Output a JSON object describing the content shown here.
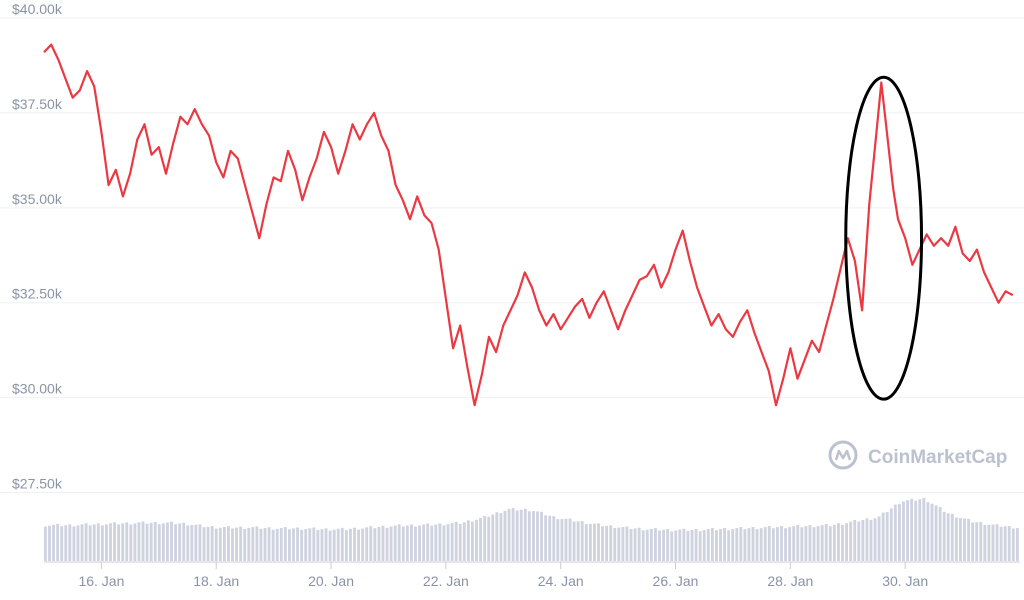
{
  "chart_data": {
    "type": "line",
    "colors": {
      "price_line": "#ea3943",
      "volume_bars": "#cfd3e0",
      "grid": "#eef0f4",
      "axis_text": "#8a93a6",
      "watermark": "#bcc1cf",
      "annotation": "#000000"
    },
    "ylim": [
      26250,
      40000
    ],
    "y_ticks": [
      {
        "value": 40000,
        "label": "$40.00k"
      },
      {
        "value": 37500,
        "label": "$37.50k"
      },
      {
        "value": 35000,
        "label": "$35.00k"
      },
      {
        "value": 32500,
        "label": "$32.50k"
      },
      {
        "value": 30000,
        "label": "$30.00k"
      },
      {
        "value": 27500,
        "label": "$27.50k"
      }
    ],
    "x_ticks": [
      {
        "value": "2022-01-16",
        "label": "16. Jan"
      },
      {
        "value": "2022-01-18",
        "label": "18. Jan"
      },
      {
        "value": "2022-01-20",
        "label": "20. Jan"
      },
      {
        "value": "2022-01-22",
        "label": "22. Jan"
      },
      {
        "value": "2022-01-24",
        "label": "24. Jan"
      },
      {
        "value": "2022-01-26",
        "label": "26. Jan"
      },
      {
        "value": "2022-01-28",
        "label": "28. Jan"
      },
      {
        "value": "2022-01-30",
        "label": "30. Jan"
      }
    ],
    "xlim": [
      "2022-01-15T00:00",
      "2022-02-01T00:00"
    ],
    "price_series": [
      {
        "x": "2022-01-15T00:00",
        "y": 39100
      },
      {
        "x": "2022-01-15T03:00",
        "y": 39300
      },
      {
        "x": "2022-01-15T06:00",
        "y": 38900
      },
      {
        "x": "2022-01-15T09:00",
        "y": 38400
      },
      {
        "x": "2022-01-15T12:00",
        "y": 37900
      },
      {
        "x": "2022-01-15T15:00",
        "y": 38100
      },
      {
        "x": "2022-01-15T18:00",
        "y": 38600
      },
      {
        "x": "2022-01-15T21:00",
        "y": 38200
      },
      {
        "x": "2022-01-16T00:00",
        "y": 37000
      },
      {
        "x": "2022-01-16T03:00",
        "y": 35600
      },
      {
        "x": "2022-01-16T06:00",
        "y": 36000
      },
      {
        "x": "2022-01-16T09:00",
        "y": 35300
      },
      {
        "x": "2022-01-16T12:00",
        "y": 35900
      },
      {
        "x": "2022-01-16T15:00",
        "y": 36800
      },
      {
        "x": "2022-01-16T18:00",
        "y": 37200
      },
      {
        "x": "2022-01-16T21:00",
        "y": 36400
      },
      {
        "x": "2022-01-17T00:00",
        "y": 36600
      },
      {
        "x": "2022-01-17T03:00",
        "y": 35900
      },
      {
        "x": "2022-01-17T06:00",
        "y": 36700
      },
      {
        "x": "2022-01-17T09:00",
        "y": 37400
      },
      {
        "x": "2022-01-17T12:00",
        "y": 37200
      },
      {
        "x": "2022-01-17T15:00",
        "y": 37600
      },
      {
        "x": "2022-01-17T18:00",
        "y": 37200
      },
      {
        "x": "2022-01-17T21:00",
        "y": 36900
      },
      {
        "x": "2022-01-18T00:00",
        "y": 36200
      },
      {
        "x": "2022-01-18T03:00",
        "y": 35800
      },
      {
        "x": "2022-01-18T06:00",
        "y": 36500
      },
      {
        "x": "2022-01-18T09:00",
        "y": 36300
      },
      {
        "x": "2022-01-18T12:00",
        "y": 35600
      },
      {
        "x": "2022-01-18T15:00",
        "y": 34900
      },
      {
        "x": "2022-01-18T18:00",
        "y": 34200
      },
      {
        "x": "2022-01-18T21:00",
        "y": 35100
      },
      {
        "x": "2022-01-19T00:00",
        "y": 35800
      },
      {
        "x": "2022-01-19T03:00",
        "y": 35700
      },
      {
        "x": "2022-01-19T06:00",
        "y": 36500
      },
      {
        "x": "2022-01-19T09:00",
        "y": 36000
      },
      {
        "x": "2022-01-19T12:00",
        "y": 35200
      },
      {
        "x": "2022-01-19T15:00",
        "y": 35800
      },
      {
        "x": "2022-01-19T18:00",
        "y": 36300
      },
      {
        "x": "2022-01-19T21:00",
        "y": 37000
      },
      {
        "x": "2022-01-20T00:00",
        "y": 36600
      },
      {
        "x": "2022-01-20T03:00",
        "y": 35900
      },
      {
        "x": "2022-01-20T06:00",
        "y": 36500
      },
      {
        "x": "2022-01-20T09:00",
        "y": 37200
      },
      {
        "x": "2022-01-20T12:00",
        "y": 36800
      },
      {
        "x": "2022-01-20T15:00",
        "y": 37200
      },
      {
        "x": "2022-01-20T18:00",
        "y": 37500
      },
      {
        "x": "2022-01-20T21:00",
        "y": 36900
      },
      {
        "x": "2022-01-21T00:00",
        "y": 36500
      },
      {
        "x": "2022-01-21T03:00",
        "y": 35600
      },
      {
        "x": "2022-01-21T06:00",
        "y": 35200
      },
      {
        "x": "2022-01-21T09:00",
        "y": 34700
      },
      {
        "x": "2022-01-21T12:00",
        "y": 35300
      },
      {
        "x": "2022-01-21T15:00",
        "y": 34800
      },
      {
        "x": "2022-01-21T18:00",
        "y": 34600
      },
      {
        "x": "2022-01-21T21:00",
        "y": 33900
      },
      {
        "x": "2022-01-22T00:00",
        "y": 32600
      },
      {
        "x": "2022-01-22T03:00",
        "y": 31300
      },
      {
        "x": "2022-01-22T06:00",
        "y": 31900
      },
      {
        "x": "2022-01-22T09:00",
        "y": 30800
      },
      {
        "x": "2022-01-22T12:00",
        "y": 29800
      },
      {
        "x": "2022-01-22T15:00",
        "y": 30600
      },
      {
        "x": "2022-01-22T18:00",
        "y": 31600
      },
      {
        "x": "2022-01-22T21:00",
        "y": 31200
      },
      {
        "x": "2022-01-23T00:00",
        "y": 31900
      },
      {
        "x": "2022-01-23T03:00",
        "y": 32300
      },
      {
        "x": "2022-01-23T06:00",
        "y": 32700
      },
      {
        "x": "2022-01-23T09:00",
        "y": 33300
      },
      {
        "x": "2022-01-23T12:00",
        "y": 32900
      },
      {
        "x": "2022-01-23T15:00",
        "y": 32300
      },
      {
        "x": "2022-01-23T18:00",
        "y": 31900
      },
      {
        "x": "2022-01-23T21:00",
        "y": 32200
      },
      {
        "x": "2022-01-24T00:00",
        "y": 31800
      },
      {
        "x": "2022-01-24T03:00",
        "y": 32100
      },
      {
        "x": "2022-01-24T06:00",
        "y": 32400
      },
      {
        "x": "2022-01-24T09:00",
        "y": 32600
      },
      {
        "x": "2022-01-24T12:00",
        "y": 32100
      },
      {
        "x": "2022-01-24T15:00",
        "y": 32500
      },
      {
        "x": "2022-01-24T18:00",
        "y": 32800
      },
      {
        "x": "2022-01-24T21:00",
        "y": 32300
      },
      {
        "x": "2022-01-25T00:00",
        "y": 31800
      },
      {
        "x": "2022-01-25T03:00",
        "y": 32300
      },
      {
        "x": "2022-01-25T06:00",
        "y": 32700
      },
      {
        "x": "2022-01-25T09:00",
        "y": 33100
      },
      {
        "x": "2022-01-25T12:00",
        "y": 33200
      },
      {
        "x": "2022-01-25T15:00",
        "y": 33500
      },
      {
        "x": "2022-01-25T18:00",
        "y": 32900
      },
      {
        "x": "2022-01-25T21:00",
        "y": 33300
      },
      {
        "x": "2022-01-26T00:00",
        "y": 33900
      },
      {
        "x": "2022-01-26T03:00",
        "y": 34400
      },
      {
        "x": "2022-01-26T06:00",
        "y": 33600
      },
      {
        "x": "2022-01-26T09:00",
        "y": 32900
      },
      {
        "x": "2022-01-26T12:00",
        "y": 32400
      },
      {
        "x": "2022-01-26T15:00",
        "y": 31900
      },
      {
        "x": "2022-01-26T18:00",
        "y": 32200
      },
      {
        "x": "2022-01-26T21:00",
        "y": 31800
      },
      {
        "x": "2022-01-27T00:00",
        "y": 31600
      },
      {
        "x": "2022-01-27T03:00",
        "y": 32000
      },
      {
        "x": "2022-01-27T06:00",
        "y": 32300
      },
      {
        "x": "2022-01-27T09:00",
        "y": 31700
      },
      {
        "x": "2022-01-27T12:00",
        "y": 31200
      },
      {
        "x": "2022-01-27T15:00",
        "y": 30700
      },
      {
        "x": "2022-01-27T18:00",
        "y": 29800
      },
      {
        "x": "2022-01-27T21:00",
        "y": 30500
      },
      {
        "x": "2022-01-28T00:00",
        "y": 31300
      },
      {
        "x": "2022-01-28T03:00",
        "y": 30500
      },
      {
        "x": "2022-01-28T06:00",
        "y": 31000
      },
      {
        "x": "2022-01-28T09:00",
        "y": 31500
      },
      {
        "x": "2022-01-28T12:00",
        "y": 31200
      },
      {
        "x": "2022-01-28T15:00",
        "y": 31900
      },
      {
        "x": "2022-01-28T18:00",
        "y": 32600
      },
      {
        "x": "2022-01-28T21:00",
        "y": 33400
      },
      {
        "x": "2022-01-29T00:00",
        "y": 34200
      },
      {
        "x": "2022-01-29T03:00",
        "y": 33600
      },
      {
        "x": "2022-01-29T06:00",
        "y": 32300
      },
      {
        "x": "2022-01-29T09:00",
        "y": 35100
      },
      {
        "x": "2022-01-29T12:00",
        "y": 37000
      },
      {
        "x": "2022-01-29T14:00",
        "y": 38300
      },
      {
        "x": "2022-01-29T16:00",
        "y": 37200
      },
      {
        "x": "2022-01-29T19:00",
        "y": 35500
      },
      {
        "x": "2022-01-29T21:00",
        "y": 34700
      },
      {
        "x": "2022-01-30T00:00",
        "y": 34200
      },
      {
        "x": "2022-01-30T03:00",
        "y": 33500
      },
      {
        "x": "2022-01-30T06:00",
        "y": 33900
      },
      {
        "x": "2022-01-30T09:00",
        "y": 34300
      },
      {
        "x": "2022-01-30T12:00",
        "y": 34000
      },
      {
        "x": "2022-01-30T15:00",
        "y": 34200
      },
      {
        "x": "2022-01-30T18:00",
        "y": 34000
      },
      {
        "x": "2022-01-30T21:00",
        "y": 34500
      },
      {
        "x": "2022-01-31T00:00",
        "y": 33800
      },
      {
        "x": "2022-01-31T03:00",
        "y": 33600
      },
      {
        "x": "2022-01-31T06:00",
        "y": 33900
      },
      {
        "x": "2022-01-31T09:00",
        "y": 33300
      },
      {
        "x": "2022-01-31T12:00",
        "y": 32900
      },
      {
        "x": "2022-01-31T15:00",
        "y": 32500
      },
      {
        "x": "2022-01-31T18:00",
        "y": 32800
      },
      {
        "x": "2022-01-31T21:00",
        "y": 32700
      }
    ],
    "volume_series": {
      "name": "Volume",
      "relative_values": [
        0.45,
        0.45,
        0.46,
        0.47,
        0.48,
        0.48,
        0.47,
        0.43,
        0.42,
        0.42,
        0.41,
        0.41,
        0.4,
        0.4,
        0.42,
        0.44,
        0.45,
        0.46,
        0.48,
        0.55,
        0.65,
        0.64,
        0.55,
        0.5,
        0.45,
        0.42,
        0.4,
        0.39,
        0.39,
        0.4,
        0.41,
        0.42,
        0.43,
        0.44,
        0.45,
        0.5,
        0.55,
        0.75,
        0.78,
        0.6,
        0.5,
        0.45,
        0.42
      ]
    },
    "annotations": [
      {
        "type": "ellipse-highlight",
        "x": "2022-01-29T15:00",
        "y": 34200,
        "rx_days": 0.66,
        "ry_value": 4240
      }
    ],
    "watermark": "CoinMarketCap",
    "grid": true,
    "legend": "none"
  }
}
